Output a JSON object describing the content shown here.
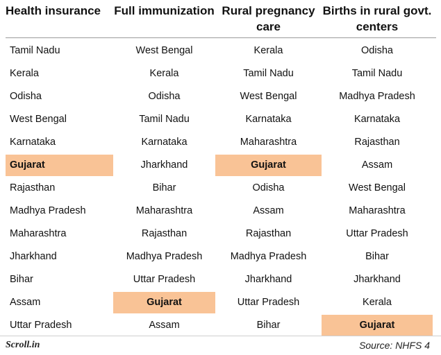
{
  "headers": [
    "Health insurance",
    "Full immunization",
    "Rural pregnancy care",
    "Births in rural govt. centers"
  ],
  "columns": [
    [
      "Tamil Nadu",
      "Kerala",
      "Odisha",
      "West Bengal",
      "Karnataka",
      "Gujarat",
      "Rajasthan",
      "Madhya Pradesh",
      "Maharashtra",
      "Jharkhand",
      "Bihar",
      "Assam",
      "Uttar Pradesh"
    ],
    [
      "West Bengal",
      "Kerala",
      "Odisha",
      "Tamil Nadu",
      "Karnataka",
      "Jharkhand",
      "Bihar",
      "Maharashtra",
      "Rajasthan",
      "Madhya Pradesh",
      "Uttar Pradesh",
      "Gujarat",
      "Assam"
    ],
    [
      "Kerala",
      "Tamil Nadu",
      "West Bengal",
      "Karnataka",
      "Maharashtra",
      "Gujarat",
      "Odisha",
      "Assam",
      "Rajasthan",
      "Madhya Pradesh",
      "Jharkhand",
      "Uttar Pradesh",
      "Bihar"
    ],
    [
      "Odisha",
      "Tamil Nadu",
      "Madhya Pradesh",
      "Karnataka",
      "Rajasthan",
      "Assam",
      "West Bengal",
      "Maharashtra",
      "Uttar Pradesh",
      "Bihar",
      "Jharkhand",
      "Kerala",
      "Gujarat"
    ]
  ],
  "highlight": {
    "name": "Gujarat",
    "color": "#f9c396"
  },
  "footer": {
    "logo": "Scroll.in",
    "source": "Source: NHFS 4"
  }
}
